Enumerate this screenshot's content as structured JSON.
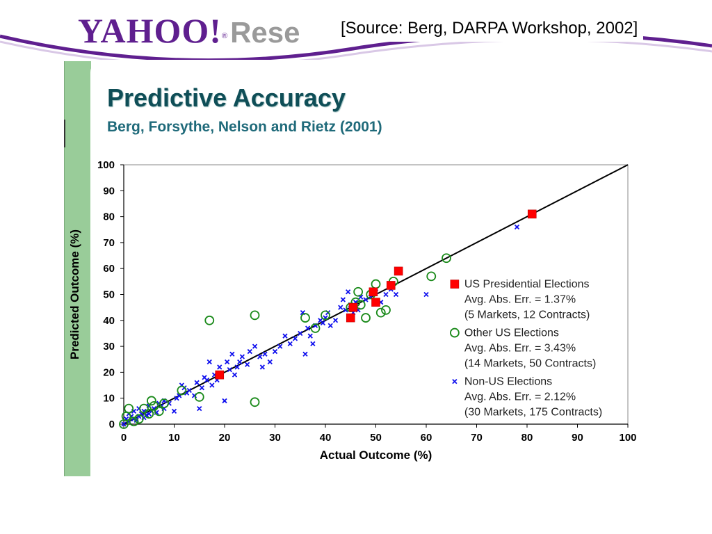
{
  "header": {
    "logo_main": "YAHOO!",
    "logo_sub": "Rese",
    "source": "[Source: Berg, DARPA Workshop, 2002]"
  },
  "slide": {
    "title": "Predictive Accuracy",
    "subtitle": "Berg, Forsythe, Nelson and Rietz (2001)"
  },
  "colors": {
    "header_accent": "#5f1f8f",
    "band": "#99cc99",
    "title": "#0f4e57",
    "us_presidential": "#ff0000",
    "other_us": "#1a8a1a",
    "non_us": "#1010ee"
  },
  "chart_data": {
    "type": "scatter",
    "xlabel": "Actual Outcome (%)",
    "ylabel": "Predicted Outcome (%)",
    "xlim": [
      0,
      100
    ],
    "ylim": [
      0,
      100
    ],
    "xticks": [
      0,
      10,
      20,
      30,
      40,
      50,
      60,
      70,
      80,
      90,
      100
    ],
    "yticks": [
      0,
      10,
      20,
      30,
      40,
      50,
      60,
      70,
      80,
      90,
      100
    ],
    "grid": false,
    "reference_line": [
      [
        0,
        0
      ],
      [
        100,
        100
      ]
    ],
    "legend_position": "right",
    "series": [
      {
        "name": "US Presidential Elections",
        "legend_lines": [
          "US Presidential Elections",
          "Avg. Abs. Err. = 1.37%",
          "(5 Markets, 12 Contracts)"
        ],
        "marker": "square",
        "color": "#ff0000",
        "points": [
          [
            19,
            19
          ],
          [
            45,
            41
          ],
          [
            45.5,
            45
          ],
          [
            49.5,
            51
          ],
          [
            50,
            47
          ],
          [
            53,
            53.5
          ],
          [
            54.5,
            59
          ],
          [
            81,
            81
          ]
        ]
      },
      {
        "name": "Other US Elections",
        "legend_lines": [
          "Other US Elections",
          "Avg. Abs. Err. = 3.43%",
          "(14 Markets, 50 Contracts)"
        ],
        "marker": "circle",
        "color": "#1a8a1a",
        "points": [
          [
            0,
            0
          ],
          [
            0.5,
            3
          ],
          [
            1,
            6
          ],
          [
            2,
            1
          ],
          [
            3,
            2
          ],
          [
            4,
            6
          ],
          [
            5,
            4
          ],
          [
            5.5,
            9
          ],
          [
            6,
            7
          ],
          [
            7,
            5
          ],
          [
            8,
            8
          ],
          [
            11.5,
            13
          ],
          [
            15,
            10.5
          ],
          [
            17,
            40
          ],
          [
            26,
            42
          ],
          [
            26,
            8.5
          ],
          [
            36,
            41
          ],
          [
            38,
            37
          ],
          [
            40,
            42
          ],
          [
            45,
            45
          ],
          [
            46,
            47
          ],
          [
            46.5,
            51
          ],
          [
            47,
            46
          ],
          [
            48,
            41
          ],
          [
            49,
            50
          ],
          [
            50,
            54
          ],
          [
            51,
            43
          ],
          [
            52,
            44
          ],
          [
            53.5,
            55
          ],
          [
            61,
            57
          ],
          [
            64,
            64
          ]
        ]
      },
      {
        "name": "Non-US Elections",
        "legend_lines": [
          "Non-US Elections",
          "Avg. Abs. Err. = 2.12%",
          "(30 Markets, 175 Contracts)"
        ],
        "marker": "x",
        "color": "#1010ee",
        "points": [
          [
            0,
            0
          ],
          [
            0.5,
            2
          ],
          [
            1,
            1
          ],
          [
            1,
            4
          ],
          [
            1.5,
            3
          ],
          [
            2,
            2
          ],
          [
            2,
            5
          ],
          [
            2.5,
            1.5
          ],
          [
            3,
            3
          ],
          [
            3,
            6
          ],
          [
            3.5,
            4
          ],
          [
            4,
            2.5
          ],
          [
            4,
            5
          ],
          [
            4.5,
            3.5
          ],
          [
            5,
            4
          ],
          [
            5,
            7
          ],
          [
            5.5,
            5
          ],
          [
            6,
            6
          ],
          [
            6.5,
            4.5
          ],
          [
            7,
            8
          ],
          [
            7.5,
            7
          ],
          [
            8,
            6
          ],
          [
            8,
            9
          ],
          [
            9,
            8
          ],
          [
            10,
            5
          ],
          [
            10.5,
            10
          ],
          [
            11,
            11
          ],
          [
            11.5,
            15
          ],
          [
            12,
            14
          ],
          [
            12.5,
            12
          ],
          [
            13,
            13
          ],
          [
            14,
            11
          ],
          [
            14.5,
            16
          ],
          [
            15,
            6
          ],
          [
            15.5,
            14
          ],
          [
            16,
            18
          ],
          [
            16.5,
            17
          ],
          [
            17,
            24
          ],
          [
            17.5,
            15
          ],
          [
            18,
            19
          ],
          [
            18.5,
            17
          ],
          [
            19,
            22
          ],
          [
            20,
            9
          ],
          [
            20.5,
            24
          ],
          [
            21,
            21
          ],
          [
            21.5,
            27
          ],
          [
            22,
            19
          ],
          [
            22.5,
            22
          ],
          [
            23,
            24
          ],
          [
            23.5,
            26
          ],
          [
            24.5,
            23
          ],
          [
            25,
            28
          ],
          [
            26,
            30
          ],
          [
            27,
            26
          ],
          [
            27.5,
            22
          ],
          [
            28,
            27
          ],
          [
            29,
            24
          ],
          [
            30,
            28
          ],
          [
            31,
            30
          ],
          [
            32,
            34
          ],
          [
            33,
            31
          ],
          [
            34,
            33
          ],
          [
            35,
            35
          ],
          [
            35.5,
            43
          ],
          [
            36,
            27
          ],
          [
            36.5,
            37
          ],
          [
            37,
            34
          ],
          [
            37.5,
            31
          ],
          [
            38,
            38
          ],
          [
            39,
            40
          ],
          [
            39.5,
            39
          ],
          [
            40,
            41
          ],
          [
            40.5,
            43
          ],
          [
            41,
            38
          ],
          [
            42,
            40
          ],
          [
            43,
            45
          ],
          [
            43.5,
            48
          ],
          [
            44,
            44
          ],
          [
            44.5,
            51
          ],
          [
            45,
            46
          ],
          [
            45.5,
            43
          ],
          [
            46,
            47
          ],
          [
            46.5,
            44
          ],
          [
            47,
            49
          ],
          [
            48,
            48
          ],
          [
            49,
            49
          ],
          [
            50,
            51
          ],
          [
            51,
            47
          ],
          [
            52,
            50
          ],
          [
            53,
            52
          ],
          [
            54,
            50
          ],
          [
            60,
            50
          ],
          [
            78,
            76
          ]
        ]
      }
    ]
  }
}
